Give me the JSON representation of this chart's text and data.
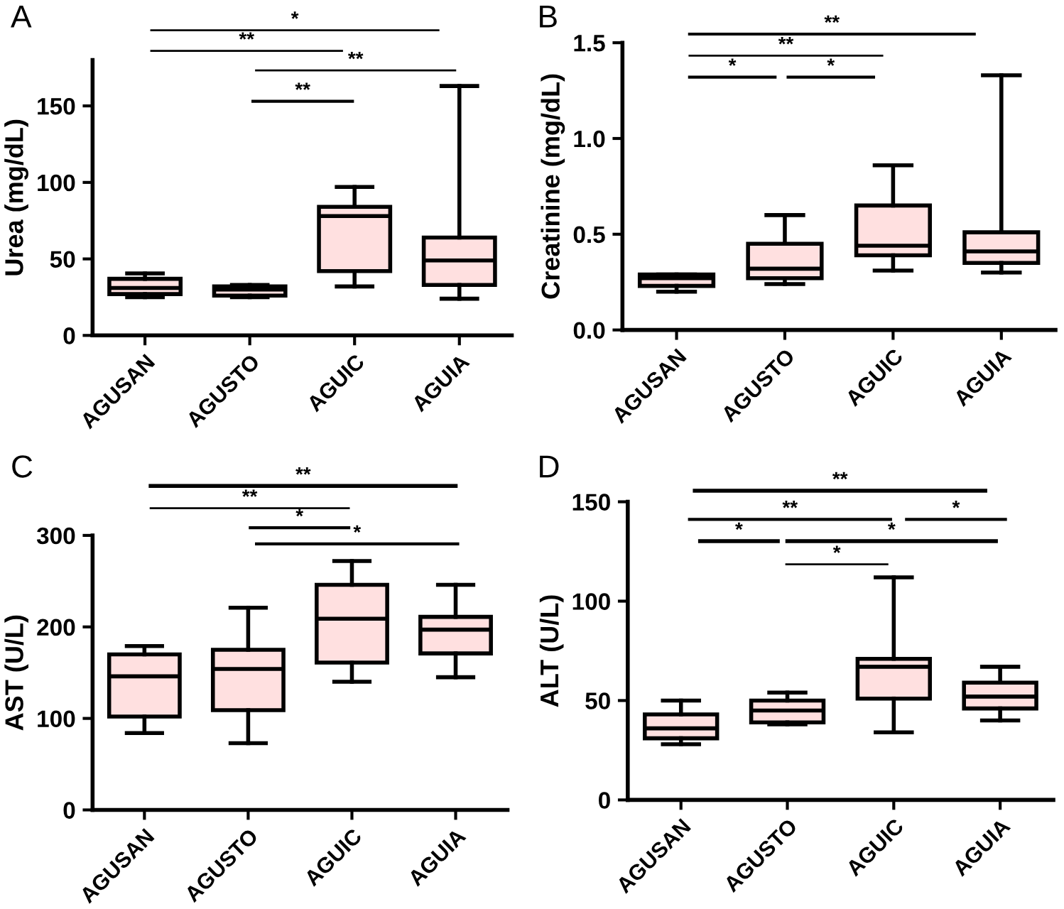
{
  "chart_data": [
    {
      "type": "box",
      "title": "A",
      "ylabel": "Urea (mg/dL)",
      "categories": [
        "AGUSAN",
        "AGUSTO",
        "AGUIC",
        "AGUIA"
      ],
      "color": "#ffe0e0",
      "ylim": [
        0,
        180
      ],
      "yticks": [
        0,
        50,
        100,
        150
      ],
      "boxes": [
        {
          "low": 25,
          "q1": 27,
          "median": 31,
          "q3": 37,
          "high": 40.5
        },
        {
          "low": 25,
          "q1": 26,
          "median": 30,
          "q3": 32,
          "high": 33
        },
        {
          "low": 32,
          "q1": 42,
          "median": 78,
          "q3": 84,
          "high": 97
        },
        {
          "low": 24,
          "q1": 33,
          "median": 49,
          "q3": 64,
          "high": 163
        }
      ],
      "annotations": [
        "*",
        "**",
        "**",
        "**"
      ]
    },
    {
      "type": "box",
      "title": "B",
      "ylabel": "Creatinine (mg/dL)",
      "categories": [
        "AGUSAN",
        "AGUSTO",
        "AGUIC",
        "AGUIA"
      ],
      "color": "#ffe0e0",
      "ylim": [
        0,
        1.5
      ],
      "yticks": [
        {
          "value": 0,
          "label": "0.0"
        },
        {
          "value": 0.5,
          "label": "0.5"
        },
        {
          "value": 1,
          "label": "1.0"
        },
        {
          "value": 1.5,
          "label": "1.5"
        }
      ],
      "boxes": [
        {
          "low": 0.2,
          "q1": 0.23,
          "median": 0.27,
          "q3": 0.29,
          "high": 0.29
        },
        {
          "low": 0.24,
          "q1": 0.27,
          "median": 0.32,
          "q3": 0.45,
          "high": 0.6
        },
        {
          "low": 0.31,
          "q1": 0.39,
          "median": 0.44,
          "q3": 0.65,
          "high": 0.86
        },
        {
          "low": 0.3,
          "q1": 0.35,
          "median": 0.41,
          "q3": 0.51,
          "high": 1.33
        }
      ],
      "annotations": [
        "**",
        "**",
        "*",
        "*"
      ]
    },
    {
      "type": "box",
      "title": "C",
      "ylabel": "AST (U/L)",
      "categories": [
        "AGUSAN",
        "AGUSTO",
        "AGUIC",
        "AGUIA"
      ],
      "color": "#ffe0e0",
      "ylim": [
        0,
        300
      ],
      "yticks": [
        0,
        100,
        200,
        300
      ],
      "boxes": [
        {
          "low": 84,
          "q1": 102,
          "median": 146,
          "q3": 170,
          "high": 179
        },
        {
          "low": 73,
          "q1": 109,
          "median": 154,
          "q3": 175,
          "high": 221
        },
        {
          "low": 140,
          "q1": 161,
          "median": 209,
          "q3": 246,
          "high": 272
        },
        {
          "low": 145,
          "q1": 171,
          "median": 197,
          "q3": 211,
          "high": 246
        }
      ],
      "annotations": [
        "**",
        "**",
        "*",
        "*"
      ]
    },
    {
      "type": "box",
      "title": "D",
      "ylabel": "ALT (U/L)",
      "categories": [
        "AGUSAN",
        "AGUSTO",
        "AGUIC",
        "AGUIA"
      ],
      "color": "#ffe0e0",
      "ylim": [
        0,
        150
      ],
      "yticks": [
        0,
        50,
        100,
        150
      ],
      "boxes": [
        {
          "low": 28,
          "q1": 31,
          "median": 36,
          "q3": 43,
          "high": 50
        },
        {
          "low": 38,
          "q1": 39,
          "median": 45,
          "q3": 50,
          "high": 54
        },
        {
          "low": 34,
          "q1": 51,
          "median": 67,
          "q3": 71,
          "high": 112
        },
        {
          "low": 40,
          "q1": 46,
          "median": 52,
          "q3": 59,
          "high": 67
        }
      ],
      "annotations": [
        "**",
        "**",
        "*",
        "*",
        "*",
        "*"
      ]
    }
  ]
}
